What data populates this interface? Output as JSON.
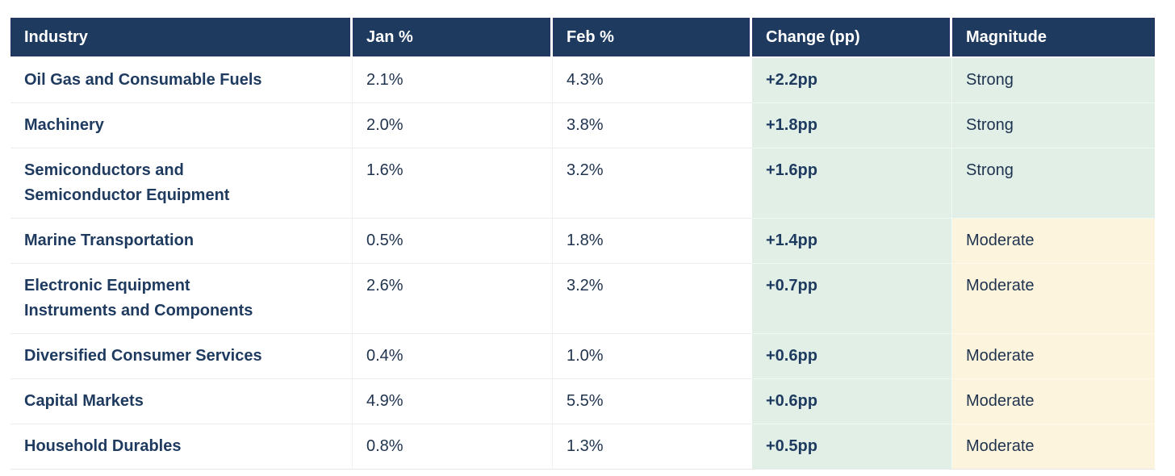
{
  "table": {
    "headers": {
      "industry": "Industry",
      "jan": "Jan %",
      "feb": "Feb %",
      "change": "Change (pp)",
      "magnitude": "Magnitude"
    },
    "rows": [
      {
        "industry": "Oil Gas and Consumable Fuels",
        "jan": "2.1%",
        "feb": "4.3%",
        "change": "+2.2pp",
        "magnitude": "Strong"
      },
      {
        "industry": "Machinery",
        "jan": "2.0%",
        "feb": "3.8%",
        "change": "+1.8pp",
        "magnitude": "Strong"
      },
      {
        "industry": "Semiconductors and\nSemiconductor Equipment",
        "jan": "1.6%",
        "feb": "3.2%",
        "change": "+1.6pp",
        "magnitude": "Strong"
      },
      {
        "industry": "Marine Transportation",
        "jan": "0.5%",
        "feb": "1.8%",
        "change": "+1.4pp",
        "magnitude": "Moderate"
      },
      {
        "industry": "Electronic Equipment\nInstruments and Components",
        "jan": "2.6%",
        "feb": "3.2%",
        "change": "+0.7pp",
        "magnitude": "Moderate"
      },
      {
        "industry": "Diversified Consumer Services",
        "jan": "0.4%",
        "feb": "1.0%",
        "change": "+0.6pp",
        "magnitude": "Moderate"
      },
      {
        "industry": "Capital Markets",
        "jan": "4.9%",
        "feb": "5.5%",
        "change": "+0.6pp",
        "magnitude": "Moderate"
      },
      {
        "industry": "Household Durables",
        "jan": "0.8%",
        "feb": "1.3%",
        "change": "+0.5pp",
        "magnitude": "Moderate"
      }
    ]
  },
  "chart_data": {
    "type": "table",
    "columns": [
      "Industry",
      "Jan %",
      "Feb %",
      "Change (pp)",
      "Magnitude"
    ],
    "rows": [
      [
        "Oil Gas and Consumable Fuels",
        2.1,
        4.3,
        2.2,
        "Strong"
      ],
      [
        "Machinery",
        2.0,
        3.8,
        1.8,
        "Strong"
      ],
      [
        "Semiconductors and Semiconductor Equipment",
        1.6,
        3.2,
        1.6,
        "Strong"
      ],
      [
        "Marine Transportation",
        0.5,
        1.8,
        1.4,
        "Moderate"
      ],
      [
        "Electronic Equipment Instruments and Components",
        2.6,
        3.2,
        0.7,
        "Moderate"
      ],
      [
        "Diversified Consumer Services",
        0.4,
        1.0,
        0.6,
        "Moderate"
      ],
      [
        "Capital Markets",
        4.9,
        5.5,
        0.6,
        "Moderate"
      ],
      [
        "Household Durables",
        0.8,
        1.3,
        0.5,
        "Moderate"
      ]
    ],
    "units": {
      "jan": "percent",
      "feb": "percent",
      "change": "percentage points"
    },
    "magnitude_legend": {
      "Strong": "green highlight",
      "Moderate": "yellow highlight"
    }
  },
  "colors": {
    "header_bg": "#1e3a5f",
    "header_text": "#ffffff",
    "bold_text": "#1e3a5f",
    "body_text": "#203450",
    "change_column_bg": "#e1efe7",
    "strong_bg": "#e1efe7",
    "moderate_bg": "#fdf4dd"
  }
}
